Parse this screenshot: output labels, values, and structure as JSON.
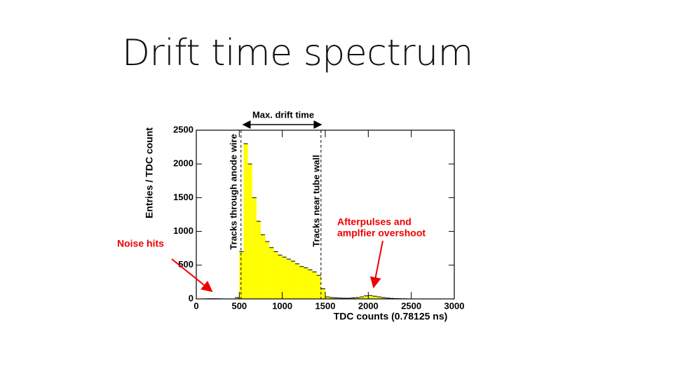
{
  "slide": {
    "title": "Drift time spectrum"
  },
  "chart_data": {
    "type": "histogram",
    "xlabel": "TDC counts (0.78125 ns)",
    "ylabel": "Entries / TDC count",
    "bins": [
      0,
      50,
      100,
      150,
      200,
      250,
      300,
      350,
      400,
      450,
      500,
      550,
      600,
      650,
      700,
      750,
      800,
      850,
      900,
      950,
      1000,
      1050,
      1100,
      1150,
      1200,
      1250,
      1300,
      1350,
      1400,
      1450,
      1500,
      1550,
      1600,
      1650,
      1700,
      1750,
      1800,
      1850,
      1900,
      1950,
      2000,
      2050,
      2100,
      2150,
      2200,
      2250,
      2300,
      2350,
      2400,
      2450,
      2500,
      2550,
      2600,
      2650,
      2700,
      2750,
      2800,
      2850,
      2900,
      2950,
      3000
    ],
    "values": [
      0,
      0,
      2,
      3,
      3,
      2,
      0,
      0,
      0,
      20,
      700,
      2300,
      2000,
      1500,
      1150,
      950,
      850,
      760,
      700,
      650,
      620,
      590,
      560,
      520,
      480,
      460,
      430,
      400,
      350,
      150,
      30,
      20,
      15,
      12,
      10,
      10,
      15,
      20,
      30,
      45,
      50,
      40,
      30,
      20,
      12,
      8,
      5,
      3,
      2,
      0,
      0,
      0,
      0,
      0,
      0,
      0,
      0,
      0,
      0,
      0
    ],
    "color": "#ffff00",
    "xlim": [
      0,
      3000
    ],
    "ylim": [
      0,
      2500
    ],
    "xticks": [
      0,
      500,
      1000,
      1500,
      2000,
      2500,
      3000
    ],
    "yticks": [
      0,
      500,
      1000,
      1500,
      2000,
      2500
    ],
    "vlines": [
      520,
      1450
    ],
    "annotations": {
      "max_drift": "Max. drift time",
      "anode": "Tracks through anode wire",
      "wall": "Tracks near tube wall",
      "noise": "Noise hits",
      "after_1": "Afterpulses and",
      "after_2": "amplfier overshoot"
    }
  }
}
